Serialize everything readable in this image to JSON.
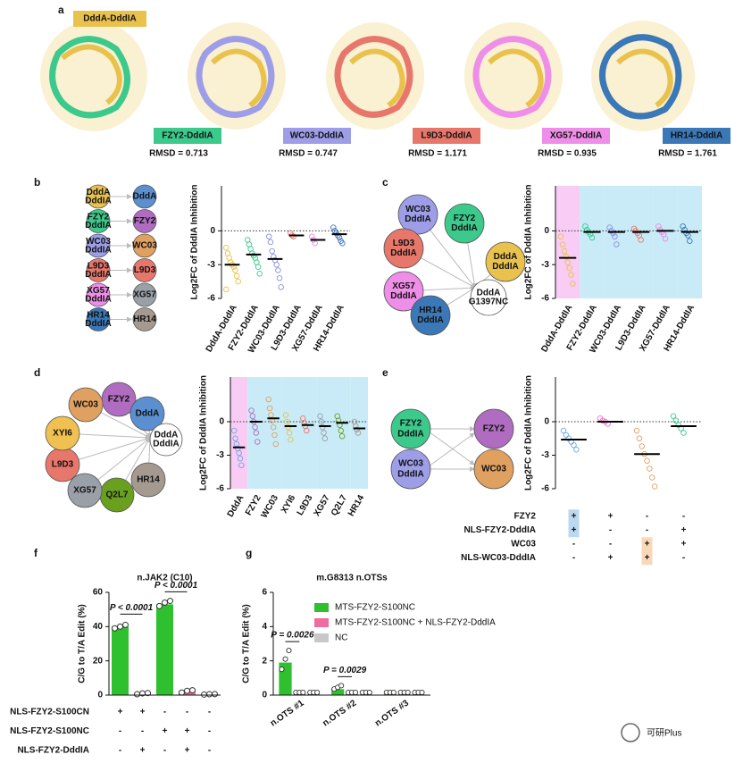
{
  "panel_labels": [
    "a",
    "b",
    "c",
    "d",
    "e",
    "f",
    "g"
  ],
  "structures": [
    {
      "name": "DddA-DddIA",
      "color": "#e8c24c"
    },
    {
      "name": "FZY2-DddIA",
      "rmsd": "RMSD = 0.713",
      "color": "#3cc98c"
    },
    {
      "name": "WC03-DddIA",
      "rmsd": "RMSD = 0.747",
      "color": "#9d9de8"
    },
    {
      "name": "L9D3-DddIA",
      "rmsd": "RMSD = 1.171",
      "color": "#e8776b"
    },
    {
      "name": "XG57-DddIA",
      "rmsd": "RMSD = 0.935",
      "color": "#ef8ee8"
    },
    {
      "name": "HR14-DddIA",
      "rmsd": "RMSD = 1.761",
      "color": "#3a78b8"
    }
  ],
  "diagrams": {
    "b": {
      "left": [
        {
          "lines": [
            "DddA",
            "DddIA"
          ],
          "color": "#e8c24c"
        },
        {
          "lines": [
            "FZY2",
            "DddIA"
          ],
          "color": "#3cc98c"
        },
        {
          "lines": [
            "WC03",
            "DddIA"
          ],
          "color": "#9d9de8"
        },
        {
          "lines": [
            "L9D3",
            "DddIA"
          ],
          "color": "#e8776b"
        },
        {
          "lines": [
            "XG57",
            "DddIA"
          ],
          "color": "#ef8ee8"
        },
        {
          "lines": [
            "HR14",
            "DddIA"
          ],
          "color": "#3a78b8"
        }
      ],
      "right": [
        {
          "lines": [
            "DddA"
          ],
          "color": "#5b8fd0"
        },
        {
          "lines": [
            "FZY2"
          ],
          "color": "#b06cc0"
        },
        {
          "lines": [
            "WC03"
          ],
          "color": "#e0a060"
        },
        {
          "lines": [
            "L9D3"
          ],
          "color": "#e8776b"
        },
        {
          "lines": [
            "XG57"
          ],
          "color": "#9aa0a8"
        },
        {
          "lines": [
            "HR14"
          ],
          "color": "#a59a90"
        }
      ]
    },
    "c": {
      "center": {
        "lines": [
          "DddA",
          "G1397NC"
        ],
        "color": "#c0203a"
      },
      "nodes": [
        {
          "lines": [
            "WC03",
            "DddIA"
          ],
          "color": "#9d9de8"
        },
        {
          "lines": [
            "FZY2",
            "DddIA"
          ],
          "color": "#3cc98c"
        },
        {
          "lines": [
            "DddA",
            "DddIA"
          ],
          "color": "#e8c24c"
        },
        {
          "lines": [
            "L9D3",
            "DddIA"
          ],
          "color": "#e8776b"
        },
        {
          "lines": [
            "XG57",
            "DddIA"
          ],
          "color": "#ef8ee8"
        },
        {
          "lines": [
            "HR14",
            "DddIA"
          ],
          "color": "#3a78b8"
        }
      ]
    },
    "d": {
      "center": {
        "lines": [
          "DddA",
          "DddIA"
        ],
        "color": "#9b3fb0"
      },
      "nodes": [
        {
          "lines": [
            "FZY2"
          ],
          "color": "#b06cc0"
        },
        {
          "lines": [
            "DddA"
          ],
          "color": "#5b8fd0"
        },
        {
          "lines": [
            "HR14"
          ],
          "color": "#a59a90"
        },
        {
          "lines": [
            "Q2L7"
          ],
          "color": "#6aa020"
        },
        {
          "lines": [
            "XG57"
          ],
          "color": "#9aa0a8"
        },
        {
          "lines": [
            "L9D3"
          ],
          "color": "#e8776b"
        },
        {
          "lines": [
            "XYI6"
          ],
          "color": "#f0c050"
        },
        {
          "lines": [
            "WC03"
          ],
          "color": "#e0a060"
        }
      ]
    },
    "e": {
      "left": [
        {
          "lines": [
            "FZY2",
            "DddIA"
          ],
          "color": "#3cc98c"
        },
        {
          "lines": [
            "WC03",
            "DddIA"
          ],
          "color": "#9d9de8"
        }
      ],
      "right": [
        {
          "lines": [
            "FZY2"
          ],
          "color": "#b06cc0"
        },
        {
          "lines": [
            "WC03"
          ],
          "color": "#e0a060"
        }
      ]
    }
  },
  "chart_data": [
    {
      "type": "dot",
      "ylabel": "Log2FC of DddIA Inhibition",
      "categories": [
        "DddA-DddIA",
        "FZY2-DddIA",
        "WC03-DddIA",
        "L9D3-DddIA",
        "XG57-DddIA",
        "HR14-DddIA"
      ],
      "colors": [
        "#e8c24c",
        "#3cc98c",
        "#8a8fe0",
        "#e8776b",
        "#e58ee0",
        "#3a78b8"
      ],
      "means": [
        -3.0,
        -2.1,
        -2.5,
        -0.4,
        -0.8,
        -0.3
      ],
      "points": [
        [
          -1.5,
          -2,
          -2.4,
          -2.8,
          -3,
          -3.2,
          -3.5,
          -4,
          -4.5,
          -5.2
        ],
        [
          -0.8,
          -1.2,
          -1.6,
          -2,
          -2.2,
          -2.4,
          -2.8,
          -3.2,
          -3.8
        ],
        [
          -0.5,
          -1,
          -1.8,
          -2.3,
          -2.6,
          -3,
          -3.5,
          -4.2,
          -5
        ],
        [
          -0.2,
          -0.4,
          -0.5
        ],
        [
          -0.5,
          -0.8,
          -1.1
        ],
        [
          0.3,
          0,
          -0.2,
          -0.4,
          -0.6,
          -0.9,
          -1.1
        ]
      ],
      "ylim": [
        -6,
        4
      ],
      "yticks": [
        0,
        -3,
        -6
      ],
      "reference_line": 0
    },
    {
      "type": "dot",
      "ylabel": "Log2FC of DddIA Inhibition",
      "categories": [
        "DddA-DddIA",
        "FZY2-DddIA",
        "WC03-DddIA",
        "L9D3-DddIA",
        "XG57-DddIA",
        "HR14-DddIA"
      ],
      "colors": [
        "#e8c24c",
        "#3cc98c",
        "#8a8fe0",
        "#e8776b",
        "#e58ee0",
        "#3a78b8"
      ],
      "band_colors": [
        "#f9ccf5",
        "#c8ebf7",
        "#c8ebf7",
        "#c8ebf7",
        "#c8ebf7",
        "#c8ebf7"
      ],
      "means": [
        -2.4,
        -0.1,
        -0.1,
        -0.1,
        0,
        -0.1
      ],
      "points": [
        [
          -0.5,
          -1.2,
          -1.8,
          -2.3,
          -2.8,
          -3.3,
          -3.9,
          -4.7
        ],
        [
          0.4,
          0.1,
          -0.1,
          -0.3,
          -0.6
        ],
        [
          0.3,
          0,
          -0.2,
          -0.5,
          -1.2
        ],
        [
          0.2,
          0,
          -0.2,
          -0.4,
          -0.8
        ],
        [
          0.4,
          0.1,
          -0.1,
          -0.3,
          -0.7
        ],
        [
          0.4,
          0.1,
          -0.2,
          -0.4,
          -0.9
        ]
      ],
      "ylim": [
        -6,
        4
      ],
      "yticks": [
        0,
        -3,
        -6
      ],
      "reference_line": 0
    },
    {
      "type": "dot",
      "ylabel": "Log2FC of DddIA Inhibition",
      "categories": [
        "DddA",
        "FZY2",
        "WC03",
        "XYI6",
        "L9D3",
        "XG57",
        "Q2L7",
        "HR14"
      ],
      "colors": [
        "#6fa8dc",
        "#b06cc0",
        "#e0a060",
        "#e8c24c",
        "#e8776b",
        "#9aa0a8",
        "#6aa020",
        "#a59a90"
      ],
      "band_colors": [
        "#f9ccf5",
        "#c8ebf7",
        "#c8ebf7",
        "#c8ebf7",
        "#c8ebf7",
        "#c8ebf7",
        "#c8ebf7",
        "#c8ebf7"
      ],
      "means": [
        -2.3,
        0,
        0.3,
        -0.4,
        -0.3,
        -0.4,
        -0.1,
        -0.6
      ],
      "points": [
        [
          -0.8,
          -1.5,
          -2,
          -2.4,
          -2.8,
          -3.3,
          -3.9
        ],
        [
          1,
          0.5,
          0,
          -0.5,
          -1,
          -1.8
        ],
        [
          2,
          1.2,
          0.6,
          0.1,
          -0.5,
          -1.2,
          -2
        ],
        [
          0.6,
          0,
          -0.5,
          -1,
          -1.6
        ],
        [
          0.3,
          -0.1,
          -0.4,
          -0.8
        ],
        [
          0.5,
          0,
          -0.5,
          -1,
          -1.5
        ],
        [
          0.5,
          0.1,
          -0.3,
          -0.8,
          -1.3
        ],
        [
          0,
          -0.4,
          -0.7,
          -1
        ]
      ],
      "ylim": [
        -6,
        4
      ],
      "yticks": [
        0,
        -3,
        -6
      ],
      "reference_line": 0
    },
    {
      "type": "dot",
      "ylabel": "Log2FC of DddIA Inhibition",
      "categories": [
        null,
        null,
        null,
        null
      ],
      "colors": [
        "#6fa8dc",
        "#ef6fc8",
        "#e0a060",
        "#3cc98c"
      ],
      "means": [
        -1.6,
        0,
        -2.9,
        -0.4
      ],
      "points": [
        [
          -0.8,
          -1.2,
          -1.5,
          -1.8,
          -2.1,
          -2.5
        ],
        [
          0.3,
          0.1,
          0,
          -0.2
        ],
        [
          -0.8,
          -1.5,
          -2.2,
          -2.9,
          -3.5,
          -4.2,
          -5,
          -5.8
        ],
        [
          0.5,
          0.1,
          -0.3,
          -0.6,
          -1
        ]
      ],
      "ylim": [
        -6,
        4
      ],
      "yticks": [
        0,
        -3,
        -6
      ],
      "reference_line": 0,
      "conditions": {
        "rows": [
          {
            "label": "FZY2",
            "marks": [
              "+",
              "+",
              "-",
              "-"
            ]
          },
          {
            "label": "NLS-FZY2-DddIA",
            "marks": [
              "+",
              "-",
              "-",
              "+"
            ]
          },
          {
            "label": "WC03",
            "marks": [
              "-",
              "-",
              "+",
              "+"
            ]
          },
          {
            "label": "NLS-WC03-DddIA",
            "marks": [
              "-",
              "+",
              "+",
              "-"
            ]
          }
        ],
        "highlights": [
          {
            "column": 0,
            "rows": [
              0,
              1
            ],
            "color": "#bcd8f0"
          },
          {
            "column": 2,
            "rows": [
              2,
              3
            ],
            "color": "#f8d8b8"
          }
        ]
      }
    },
    {
      "type": "bar",
      "title": "n.JAK2 (C10)",
      "ylabel": "C/G to T/A Edit (%)",
      "categories": [
        null,
        null,
        null,
        null,
        null
      ],
      "values": [
        40,
        1,
        53,
        2,
        0.5
      ],
      "colors": [
        "#2fc02f",
        "#f06ca0",
        "#2fc02f",
        "#f06ca0",
        "#c8c8c8"
      ],
      "points": [
        [
          39,
          40,
          41
        ],
        [
          0.5,
          1,
          1.2
        ],
        [
          52,
          54,
          55
        ],
        [
          1.5,
          2.5,
          2.8
        ],
        [
          0.3,
          0.5,
          0.6
        ]
      ],
      "ylim": [
        0,
        60
      ],
      "yticks": [
        0,
        20,
        40,
        60
      ],
      "annotations": [
        {
          "text": "P < 0.0001",
          "between": [
            0,
            1
          ]
        },
        {
          "text": "P < 0.0001",
          "between": [
            2,
            3
          ]
        }
      ],
      "conditions": {
        "rows": [
          {
            "label": "NLS-FZY2-S100CN",
            "marks": [
              "+",
              "+",
              "-",
              "-",
              "-"
            ]
          },
          {
            "label": "NLS-FZY2-S100NC",
            "marks": [
              "-",
              "-",
              "+",
              "+",
              "-"
            ]
          },
          {
            "label": "NLS-FZY2-DddIA",
            "marks": [
              "-",
              "+",
              "-",
              "+",
              "-"
            ]
          }
        ]
      }
    },
    {
      "type": "groupedbar",
      "title": "m.G8313 n.OTSs",
      "ylabel": "C/G to T/A Edit (%)",
      "categories": [
        "n.OTS #1",
        "n.OTS #2",
        "n.OTS #3"
      ],
      "series": [
        {
          "name": "MTS-FZY2-S100NC",
          "color": "#2fc02f",
          "values": [
            1.9,
            0.35,
            0.05
          ],
          "points": [
            [
              1.4,
              2.0,
              2.5
            ],
            [
              0.25,
              0.35,
              0.45
            ],
            [
              0.05,
              0.05,
              0.05
            ]
          ]
        },
        {
          "name": "MTS-FZY2-S100NC + NLS-FZY2-DddIA",
          "color": "#f06ca0",
          "values": [
            0.05,
            0.05,
            0.05
          ],
          "points": [
            [
              0.05,
              0.05,
              0.05
            ],
            [
              0.05,
              0.05,
              0.05
            ],
            [
              0.05,
              0.05,
              0.05
            ]
          ]
        },
        {
          "name": "NC",
          "color": "#c8c8c8",
          "values": [
            0.05,
            0.05,
            0.05
          ],
          "points": [
            [
              0.05,
              0.05,
              0.05
            ],
            [
              0.05,
              0.05,
              0.05
            ],
            [
              0.05,
              0.05,
              0.05
            ]
          ]
        }
      ],
      "ylim": [
        0,
        6
      ],
      "yticks": [
        0,
        2,
        4,
        6
      ],
      "annotations": [
        {
          "text": "P = 0.0026",
          "category": 0
        },
        {
          "text": "P = 0.0029",
          "category": 1
        }
      ]
    }
  ],
  "watermark": "可研Plus"
}
